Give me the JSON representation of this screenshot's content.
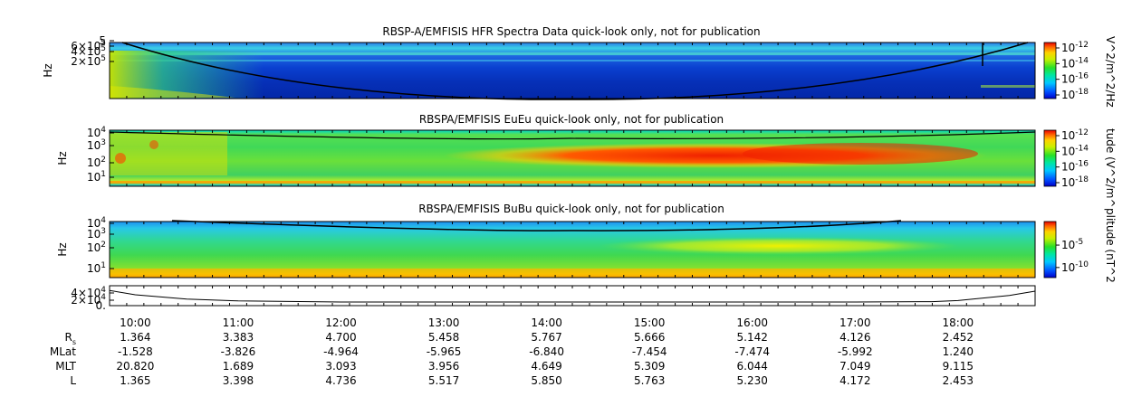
{
  "chart_data": [
    {
      "type": "heatmap",
      "title": "RBSP-A/EMFISIS  HFR Spectra Data quick-look only, not for publication",
      "ylabel": "Hz",
      "y_ticks": [
        {
          "label": "5",
          "kind": "plain"
        },
        {
          "label": "6×10",
          "exp": "5"
        },
        {
          "label": "4×10",
          "exp": "5"
        },
        {
          "label": "2×10",
          "exp": "5"
        }
      ],
      "colorbar": {
        "label": "V^2/m^2/Hz",
        "ticks": [
          {
            "base": "10",
            "exp": "-12"
          },
          {
            "base": "10",
            "exp": "-14"
          },
          {
            "base": "10",
            "exp": "-16"
          },
          {
            "base": "10",
            "exp": "-18"
          }
        ]
      }
    },
    {
      "type": "heatmap",
      "title": "RBSPA/EMFISIS  EuEu quick-look only, not for publication",
      "ylabel": "Hz",
      "y_ticks": [
        {
          "base": "10",
          "exp": "4"
        },
        {
          "base": "10",
          "exp": "3"
        },
        {
          "base": "10",
          "exp": "2"
        },
        {
          "base": "10",
          "exp": "1"
        }
      ],
      "colorbar": {
        "label": "tude (V^2/m^",
        "ticks": [
          {
            "base": "10",
            "exp": "-12"
          },
          {
            "base": "10",
            "exp": "-14"
          },
          {
            "base": "10",
            "exp": "-16"
          },
          {
            "base": "10",
            "exp": "-18"
          }
        ]
      }
    },
    {
      "type": "heatmap",
      "title": "RBSPA/EMFISIS  BuBu quick-look only, not for publication",
      "ylabel": "Hz",
      "y_ticks": [
        {
          "base": "10",
          "exp": "4"
        },
        {
          "base": "10",
          "exp": "3"
        },
        {
          "base": "10",
          "exp": "2"
        },
        {
          "base": "10",
          "exp": "1"
        }
      ],
      "colorbar": {
        "label": "plitude (nT^2",
        "ticks": [
          {
            "base": "10",
            "exp": "-5"
          },
          {
            "base": "10",
            "exp": "-10"
          }
        ]
      }
    },
    {
      "type": "line",
      "y_ticks": [
        {
          "label": "4×10",
          "exp": "4"
        },
        {
          "label": "2×10",
          "exp": "4"
        },
        {
          "label": "0.",
          "exp": ""
        }
      ],
      "ylim": [
        0,
        40000
      ],
      "series": [
        {
          "x": [
            "09:45",
            "10:00",
            "10:30",
            "11:00",
            "12:00",
            "13:00",
            "14:00",
            "15:00",
            "16:00",
            "17:00",
            "17:45",
            "18:00",
            "18:30",
            "18:45"
          ],
          "values": [
            32000,
            20000,
            8000,
            3000,
            0,
            0,
            0,
            0,
            0,
            0,
            1000,
            4000,
            18000,
            30000
          ]
        }
      ]
    }
  ],
  "time_axis": {
    "labels": [
      "10:00",
      "11:00",
      "12:00",
      "13:00",
      "14:00",
      "15:00",
      "16:00",
      "17:00",
      "18:00"
    ]
  },
  "ephemeris": [
    {
      "label": "R",
      "sub": "s",
      "values": [
        "1.364",
        "3.383",
        "4.700",
        "5.458",
        "5.767",
        "5.666",
        "5.142",
        "4.126",
        "2.452"
      ]
    },
    {
      "label": "MLat",
      "sub": "",
      "values": [
        "-1.528",
        "-3.826",
        "-4.964",
        "-5.965",
        "-6.840",
        "-7.454",
        "-7.474",
        "-5.992",
        "1.240"
      ]
    },
    {
      "label": "MLT",
      "sub": "",
      "values": [
        "20.820",
        "1.689",
        "3.093",
        "3.956",
        "4.649",
        "5.309",
        "6.044",
        "7.049",
        "9.115"
      ]
    },
    {
      "label": "L",
      "sub": "",
      "values": [
        "1.365",
        "3.398",
        "4.736",
        "5.517",
        "5.850",
        "5.763",
        "5.230",
        "4.172",
        "2.453"
      ]
    }
  ]
}
